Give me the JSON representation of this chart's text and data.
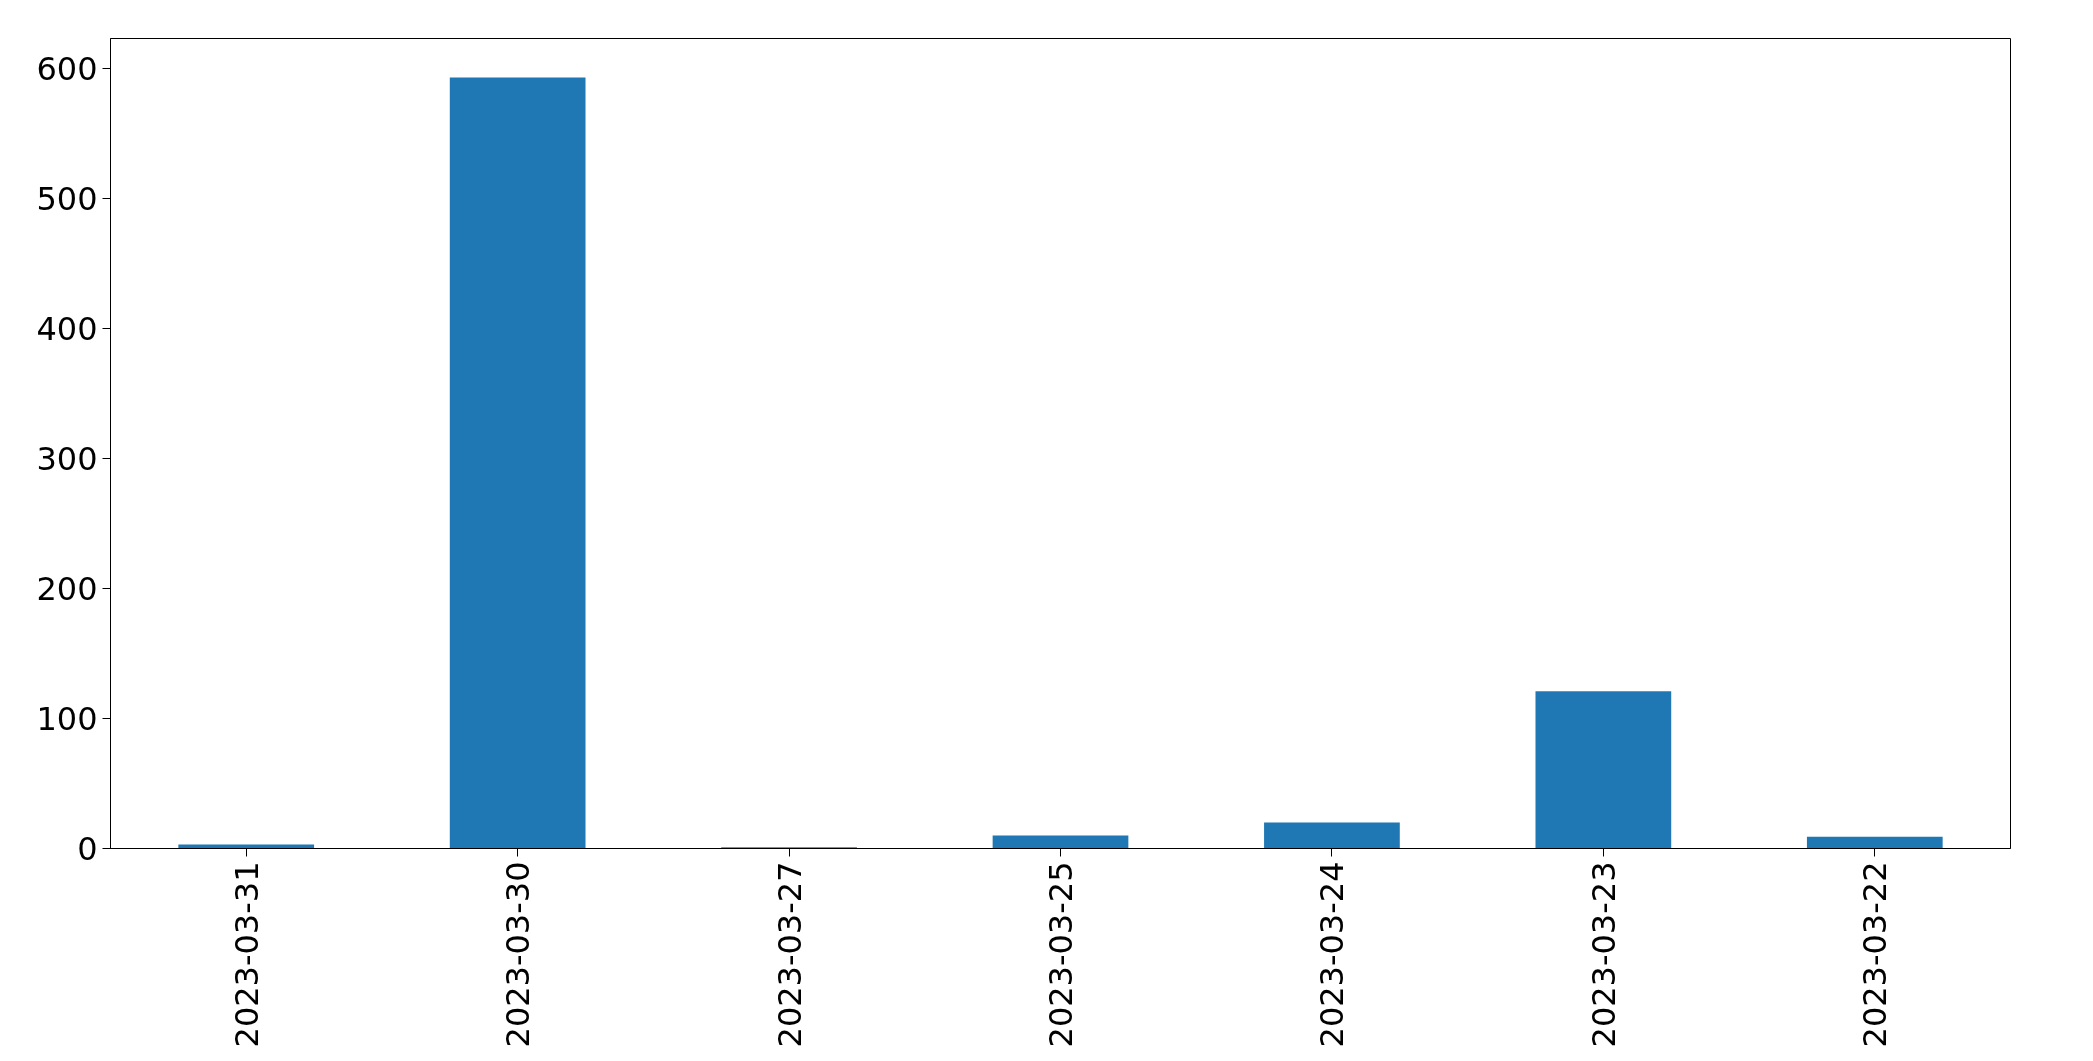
{
  "chart_data": {
    "type": "bar",
    "categories": [
      "2023-03-31",
      "2023-03-30",
      "2023-03-27",
      "2023-03-25",
      "2023-03-24",
      "2023-03-23",
      "2023-03-22"
    ],
    "values": [
      3,
      593,
      1,
      10,
      20,
      121,
      9
    ],
    "color": "#1f77b4",
    "ylim": [
      0,
      623
    ],
    "yticks": [
      0,
      100,
      200,
      300,
      400,
      500,
      600
    ],
    "grid": false
  }
}
